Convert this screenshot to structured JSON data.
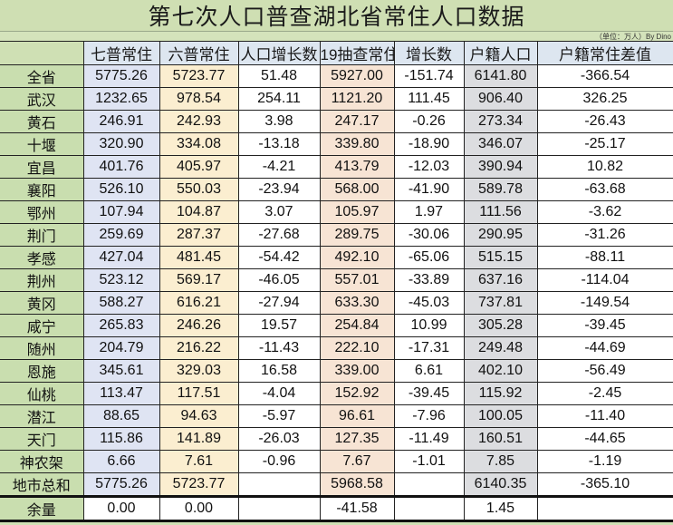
{
  "title": "第七次人口普查湖北省常住人口数据",
  "note": "（单位：万人）By Dino",
  "table": {
    "columns": [
      "七普常住",
      "六普常住",
      "人口增长数",
      "19抽查常住",
      "增长数",
      "户籍人口",
      "户籍常住差值"
    ],
    "rows": [
      {
        "label": "全省",
        "cells": [
          "5775.26",
          "5723.77",
          "51.48",
          "5927.00",
          "-151.74",
          "6141.80",
          "-366.54"
        ]
      },
      {
        "label": "武汉",
        "cells": [
          "1232.65",
          "978.54",
          "254.11",
          "1121.20",
          "111.45",
          "906.40",
          "326.25"
        ]
      },
      {
        "label": "黄石",
        "cells": [
          "246.91",
          "242.93",
          "3.98",
          "247.17",
          "-0.26",
          "273.34",
          "-26.43"
        ]
      },
      {
        "label": "十堰",
        "cells": [
          "320.90",
          "334.08",
          "-13.18",
          "339.80",
          "-18.90",
          "346.07",
          "-25.17"
        ]
      },
      {
        "label": "宜昌",
        "cells": [
          "401.76",
          "405.97",
          "-4.21",
          "413.79",
          "-12.03",
          "390.94",
          "10.82"
        ]
      },
      {
        "label": "襄阳",
        "cells": [
          "526.10",
          "550.03",
          "-23.94",
          "568.00",
          "-41.90",
          "589.78",
          "-63.68"
        ]
      },
      {
        "label": "鄂州",
        "cells": [
          "107.94",
          "104.87",
          "3.07",
          "105.97",
          "1.97",
          "111.56",
          "-3.62"
        ]
      },
      {
        "label": "荆门",
        "cells": [
          "259.69",
          "287.37",
          "-27.68",
          "289.75",
          "-30.06",
          "290.95",
          "-31.26"
        ]
      },
      {
        "label": "孝感",
        "cells": [
          "427.04",
          "481.45",
          "-54.42",
          "492.10",
          "-65.06",
          "515.15",
          "-88.11"
        ]
      },
      {
        "label": "荆州",
        "cells": [
          "523.12",
          "569.17",
          "-46.05",
          "557.01",
          "-33.89",
          "637.16",
          "-114.04"
        ]
      },
      {
        "label": "黄冈",
        "cells": [
          "588.27",
          "616.21",
          "-27.94",
          "633.30",
          "-45.03",
          "737.81",
          "-149.54"
        ]
      },
      {
        "label": "咸宁",
        "cells": [
          "265.83",
          "246.26",
          "19.57",
          "254.84",
          "10.99",
          "305.28",
          "-39.45"
        ]
      },
      {
        "label": "随州",
        "cells": [
          "204.79",
          "216.22",
          "-11.43",
          "222.10",
          "-17.31",
          "249.48",
          "-44.69"
        ]
      },
      {
        "label": "恩施",
        "cells": [
          "345.61",
          "329.03",
          "16.58",
          "339.00",
          "6.61",
          "402.10",
          "-56.49"
        ]
      },
      {
        "label": "仙桃",
        "cells": [
          "113.47",
          "117.51",
          "-4.04",
          "152.92",
          "-39.45",
          "115.92",
          "-2.45"
        ]
      },
      {
        "label": "潜江",
        "cells": [
          "88.65",
          "94.63",
          "-5.97",
          "96.61",
          "-7.96",
          "100.05",
          "-11.40"
        ]
      },
      {
        "label": "天门",
        "cells": [
          "115.86",
          "141.89",
          "-26.03",
          "127.35",
          "-11.49",
          "160.51",
          "-44.65"
        ]
      },
      {
        "label": "神农架",
        "cells": [
          "6.66",
          "7.61",
          "-0.96",
          "7.67",
          "-1.01",
          "7.85",
          "-1.19"
        ]
      },
      {
        "label": "地市总和",
        "cells": [
          "5775.26",
          "5723.77",
          "",
          "5968.58",
          "",
          "6140.35",
          "-365.10"
        ]
      },
      {
        "label": "余量",
        "cells": [
          "0.00",
          "0.00",
          "",
          "-41.58",
          "",
          "1.45",
          ""
        ]
      }
    ]
  },
  "colors": {
    "title_bg": "#cfdfb3",
    "row_label_bg": "#c9deaf",
    "header_bg": "#dde6f0",
    "col_census7": "#dfe4f3",
    "col_census6": "#fbeed0",
    "col_sample19": "#f7e4d4",
    "col_hukou": "#dcdde0"
  }
}
